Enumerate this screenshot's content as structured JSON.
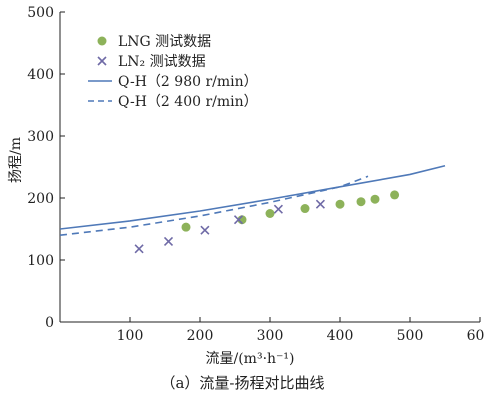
{
  "chart_data": {
    "type": "scatter",
    "xlabel": "流量/(m³·h⁻¹)",
    "ylabel": "扬程/m",
    "xlim": [
      0,
      600
    ],
    "ylim": [
      0,
      500
    ],
    "xticks": [
      100,
      200,
      300,
      400,
      500,
      600
    ],
    "yticks": [
      0,
      100,
      200,
      300,
      400,
      500
    ],
    "tick_labels_x": [
      "100",
      "200",
      "300",
      "400",
      "500",
      "600"
    ],
    "tick_labels_y": [
      "0",
      "100",
      "200",
      "300",
      "400",
      "500"
    ],
    "grid": false,
    "legend_position": "top-left",
    "series": [
      {
        "name": "LNG 测试数据",
        "kind": "scatter",
        "marker": "circle",
        "color": "#8db25a",
        "x": [
          180,
          260,
          300,
          350,
          400,
          430,
          450,
          478
        ],
        "y": [
          153,
          165,
          175,
          183,
          190,
          194,
          198,
          205
        ]
      },
      {
        "name": "LN₂ 测试数据",
        "kind": "scatter",
        "marker": "x",
        "color": "#6f6aa6",
        "x": [
          113,
          155,
          207,
          255,
          312,
          372
        ],
        "y": [
          118,
          130,
          148,
          165,
          182,
          190
        ]
      },
      {
        "name": "Q-H（2 980 r/min）",
        "kind": "line",
        "style": "solid",
        "color": "#4f79b8",
        "x": [
          0,
          100,
          200,
          300,
          400,
          500,
          550
        ],
        "y": [
          150,
          163,
          179,
          198,
          218,
          238,
          252
        ]
      },
      {
        "name": "Q-H（2 400 r/min）",
        "kind": "line",
        "style": "dashed",
        "color": "#4f79b8",
        "x": [
          0,
          100,
          200,
          300,
          400,
          440
        ],
        "y": [
          140,
          153,
          171,
          193,
          218,
          235
        ]
      }
    ]
  },
  "caption": "（a）流量-扬程对比曲线"
}
